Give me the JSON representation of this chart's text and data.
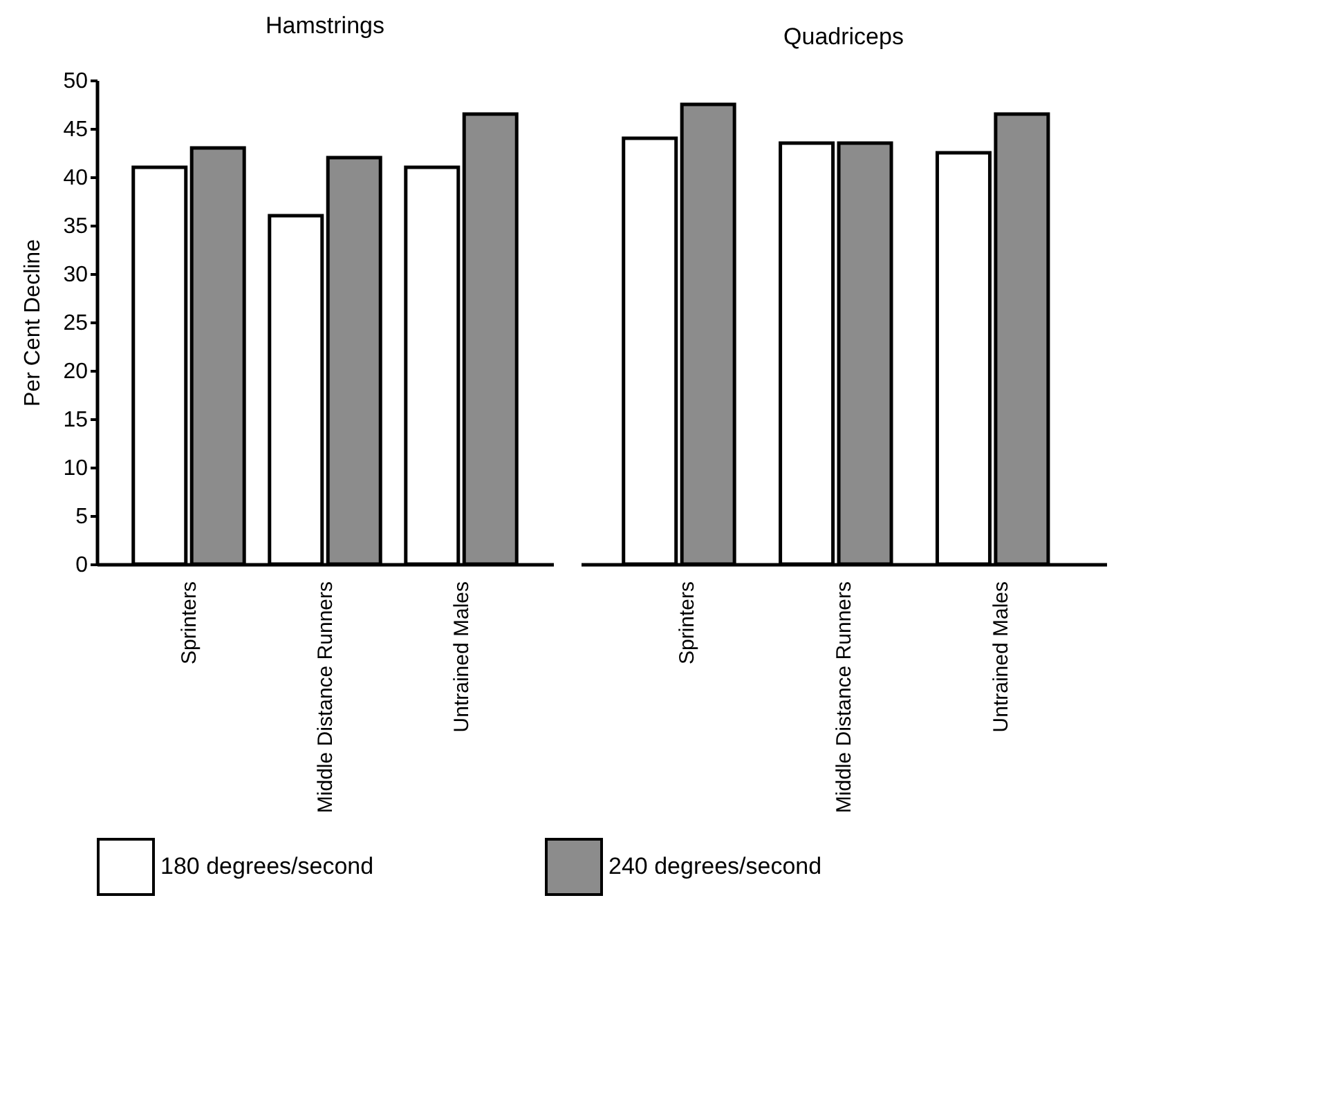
{
  "chart_data": [
    {
      "type": "bar",
      "title": "Hamstrings",
      "ylabel": "Per Cent Decline",
      "categories": [
        "Sprinters",
        "Middle Distance Runners",
        "Untrained Males"
      ],
      "ylim": [
        0,
        50
      ],
      "yticks": [
        0,
        5,
        10,
        15,
        20,
        25,
        30,
        35,
        40,
        45,
        50
      ],
      "legend": "bottom",
      "series": [
        {
          "name": "180 degrees/second",
          "color": "#ffffff",
          "values": [
            41,
            36,
            41
          ]
        },
        {
          "name": "240 degrees/second",
          "color": "#8c8c8c",
          "values": [
            43,
            42,
            46.5
          ]
        }
      ]
    },
    {
      "type": "bar",
      "title": "Quadriceps",
      "categories": [
        "Sprinters",
        "Middle Distance Runners",
        "Untrained Males"
      ],
      "ylim": [
        0,
        50
      ],
      "yticks": [
        0,
        5,
        10,
        15,
        20,
        25,
        30,
        35,
        40,
        45,
        50
      ],
      "tick_labels": "x",
      "legend": "bottom",
      "series": [
        {
          "name": "180 degrees/second",
          "color": "#ffffff",
          "values": [
            44,
            43.5,
            42.5
          ]
        },
        {
          "name": "240 degrees/second",
          "color": "#8c8c8c",
          "values": [
            47.5,
            43.5,
            46.5
          ]
        }
      ]
    }
  ]
}
